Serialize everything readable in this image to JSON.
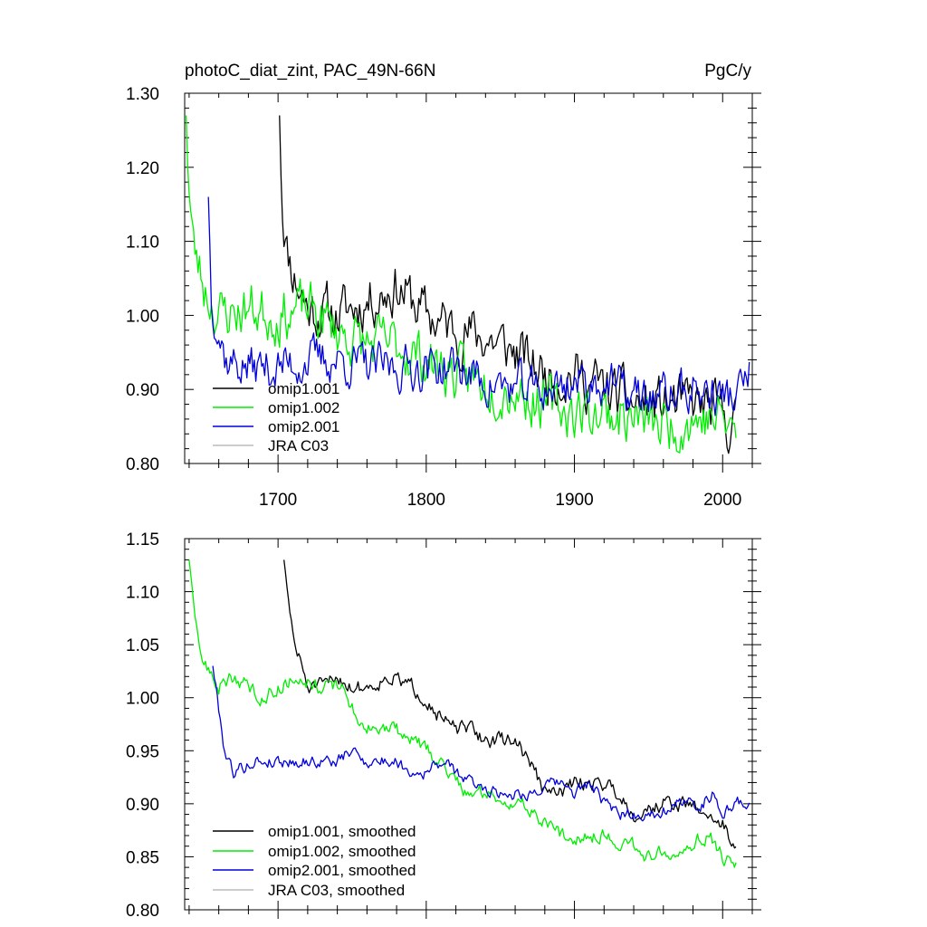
{
  "chart_data": [
    {
      "type": "line",
      "title_left": "photoC_diat_zint, PAC_49N-66N",
      "title_right": "PgC/y",
      "xlim": [
        1637,
        2020
      ],
      "ylim": [
        0.8,
        1.3
      ],
      "yticks": [
        "0.80",
        "0.90",
        "1.00",
        "1.10",
        "1.20",
        "1.30"
      ],
      "yticks_values": [
        0.8,
        0.9,
        1.0,
        1.1,
        1.2,
        1.3
      ],
      "xticks": [
        "1700",
        "1800",
        "1900",
        "2000"
      ],
      "xticks_values": [
        1700,
        1800,
        1900,
        2000
      ],
      "series": [
        {
          "name": "omip1.001",
          "color": "#000000",
          "start": 1701,
          "end": 2009,
          "knots": [
            [
              1701,
              1.27
            ],
            [
              1703,
              1.15
            ],
            [
              1706,
              1.09
            ],
            [
              1710,
              1.06
            ],
            [
              1720,
              1.01
            ],
            [
              1740,
              1.0
            ],
            [
              1760,
              1.02
            ],
            [
              1780,
              1.04
            ],
            [
              1800,
              1.0
            ],
            [
              1820,
              0.98
            ],
            [
              1840,
              0.97
            ],
            [
              1860,
              0.95
            ],
            [
              1880,
              0.92
            ],
            [
              1900,
              0.92
            ],
            [
              1920,
              0.9
            ],
            [
              1940,
              0.88
            ],
            [
              1960,
              0.88
            ],
            [
              1980,
              0.88
            ],
            [
              1995,
              0.87
            ],
            [
              2009,
              0.85
            ]
          ],
          "noise": 0.03,
          "seed": 11
        },
        {
          "name": "omip1.002",
          "color": "#00ee00",
          "start": 1638,
          "end": 2009,
          "knots": [
            [
              1638,
              1.27
            ],
            [
              1640,
              1.17
            ],
            [
              1643,
              1.09
            ],
            [
              1650,
              1.04
            ],
            [
              1660,
              1.0
            ],
            [
              1680,
              1.01
            ],
            [
              1700,
              1.0
            ],
            [
              1720,
              1.01
            ],
            [
              1740,
              0.98
            ],
            [
              1760,
              0.96
            ],
            [
              1780,
              0.96
            ],
            [
              1800,
              0.94
            ],
            [
              1820,
              0.92
            ],
            [
              1840,
              0.91
            ],
            [
              1860,
              0.9
            ],
            [
              1880,
              0.88
            ],
            [
              1900,
              0.87
            ],
            [
              1920,
              0.87
            ],
            [
              1940,
              0.86
            ],
            [
              1960,
              0.85
            ],
            [
              1980,
              0.86
            ],
            [
              2000,
              0.86
            ],
            [
              2009,
              0.84
            ]
          ],
          "noise": 0.03,
          "seed": 23
        },
        {
          "name": "omip2.001",
          "color": "#0000dd",
          "start": 1653,
          "end": 2018,
          "knots": [
            [
              1653,
              1.16
            ],
            [
              1655,
              1.03
            ],
            [
              1660,
              0.98
            ],
            [
              1665,
              0.94
            ],
            [
              1680,
              0.93
            ],
            [
              1700,
              0.93
            ],
            [
              1720,
              0.94
            ],
            [
              1740,
              0.94
            ],
            [
              1760,
              0.93
            ],
            [
              1780,
              0.93
            ],
            [
              1800,
              0.93
            ],
            [
              1820,
              0.93
            ],
            [
              1840,
              0.91
            ],
            [
              1860,
              0.9
            ],
            [
              1880,
              0.9
            ],
            [
              1900,
              0.91
            ],
            [
              1920,
              0.91
            ],
            [
              1940,
              0.89
            ],
            [
              1960,
              0.89
            ],
            [
              1980,
              0.9
            ],
            [
              2000,
              0.89
            ],
            [
              2010,
              0.89
            ],
            [
              2018,
              0.92
            ]
          ],
          "noise": 0.025,
          "seed": 37
        },
        {
          "name": "JRA C03",
          "color": "#bbbbbb",
          "start": null,
          "end": null,
          "knots": [],
          "noise": 0,
          "seed": 0
        }
      ]
    },
    {
      "type": "line",
      "xlim": [
        1637,
        2020
      ],
      "ylim": [
        0.8,
        1.15
      ],
      "yticks": [
        "0.80",
        "0.85",
        "0.90",
        "0.95",
        "1.00",
        "1.05",
        "1.10",
        "1.15"
      ],
      "yticks_values": [
        0.8,
        0.85,
        0.9,
        0.95,
        1.0,
        1.05,
        1.1,
        1.15
      ],
      "xticks_values": [
        1700,
        1800,
        1900,
        2000
      ],
      "series": [
        {
          "name": "omip1.001, smoothed",
          "color": "#000000",
          "start": 1704,
          "end": 2009,
          "knots": [
            [
              1704,
              1.13
            ],
            [
              1706,
              1.1
            ],
            [
              1709,
              1.07
            ],
            [
              1713,
              1.04
            ],
            [
              1716,
              1.03
            ],
            [
              1720,
              1.01
            ],
            [
              1730,
              1.01
            ],
            [
              1740,
              1.02
            ],
            [
              1750,
              1.01
            ],
            [
              1760,
              1.01
            ],
            [
              1775,
              1.02
            ],
            [
              1790,
              1.01
            ],
            [
              1800,
              1.0
            ],
            [
              1810,
              0.98
            ],
            [
              1820,
              0.97
            ],
            [
              1830,
              0.97
            ],
            [
              1840,
              0.96
            ],
            [
              1850,
              0.96
            ],
            [
              1860,
              0.96
            ],
            [
              1870,
              0.94
            ],
            [
              1880,
              0.91
            ],
            [
              1890,
              0.91
            ],
            [
              1900,
              0.92
            ],
            [
              1920,
              0.92
            ],
            [
              1930,
              0.91
            ],
            [
              1940,
              0.89
            ],
            [
              1960,
              0.9
            ],
            [
              1975,
              0.9
            ],
            [
              1990,
              0.89
            ],
            [
              2000,
              0.88
            ],
            [
              2009,
              0.86
            ]
          ],
          "noise": 0.006,
          "seed": 51
        },
        {
          "name": "omip1.002, smoothed",
          "color": "#00ee00",
          "start": 1640,
          "end": 2009,
          "knots": [
            [
              1640,
              1.13
            ],
            [
              1643,
              1.08
            ],
            [
              1648,
              1.04
            ],
            [
              1655,
              1.02
            ],
            [
              1660,
              1.01
            ],
            [
              1670,
              1.02
            ],
            [
              1680,
              1.01
            ],
            [
              1690,
              1.0
            ],
            [
              1700,
              1.01
            ],
            [
              1715,
              1.02
            ],
            [
              1730,
              1.01
            ],
            [
              1745,
              1.01
            ],
            [
              1750,
              0.99
            ],
            [
              1760,
              0.97
            ],
            [
              1770,
              0.97
            ],
            [
              1780,
              0.97
            ],
            [
              1790,
              0.96
            ],
            [
              1800,
              0.95
            ],
            [
              1810,
              0.94
            ],
            [
              1820,
              0.92
            ],
            [
              1830,
              0.91
            ],
            [
              1840,
              0.91
            ],
            [
              1860,
              0.9
            ],
            [
              1875,
              0.89
            ],
            [
              1890,
              0.87
            ],
            [
              1900,
              0.87
            ],
            [
              1920,
              0.87
            ],
            [
              1940,
              0.86
            ],
            [
              1950,
              0.85
            ],
            [
              1970,
              0.86
            ],
            [
              1990,
              0.87
            ],
            [
              2000,
              0.85
            ],
            [
              2009,
              0.84
            ]
          ],
          "noise": 0.006,
          "seed": 63
        },
        {
          "name": "omip2.001, smoothed",
          "color": "#0000dd",
          "start": 1656,
          "end": 2018,
          "knots": [
            [
              1656,
              1.03
            ],
            [
              1660,
              0.99
            ],
            [
              1664,
              0.95
            ],
            [
              1670,
              0.93
            ],
            [
              1685,
              0.94
            ],
            [
              1700,
              0.94
            ],
            [
              1720,
              0.94
            ],
            [
              1740,
              0.94
            ],
            [
              1750,
              0.95
            ],
            [
              1760,
              0.94
            ],
            [
              1780,
              0.94
            ],
            [
              1790,
              0.93
            ],
            [
              1800,
              0.93
            ],
            [
              1810,
              0.94
            ],
            [
              1830,
              0.92
            ],
            [
              1850,
              0.91
            ],
            [
              1870,
              0.91
            ],
            [
              1890,
              0.92
            ],
            [
              1900,
              0.91
            ],
            [
              1910,
              0.92
            ],
            [
              1920,
              0.9
            ],
            [
              1930,
              0.89
            ],
            [
              1950,
              0.89
            ],
            [
              1970,
              0.9
            ],
            [
              1985,
              0.9
            ],
            [
              1995,
              0.91
            ],
            [
              2000,
              0.89
            ],
            [
              2010,
              0.9
            ],
            [
              2018,
              0.9
            ]
          ],
          "noise": 0.005,
          "seed": 79
        },
        {
          "name": "JRA C03, smoothed",
          "color": "#bbbbbb",
          "start": null,
          "end": null,
          "knots": [],
          "noise": 0,
          "seed": 0
        }
      ]
    }
  ]
}
